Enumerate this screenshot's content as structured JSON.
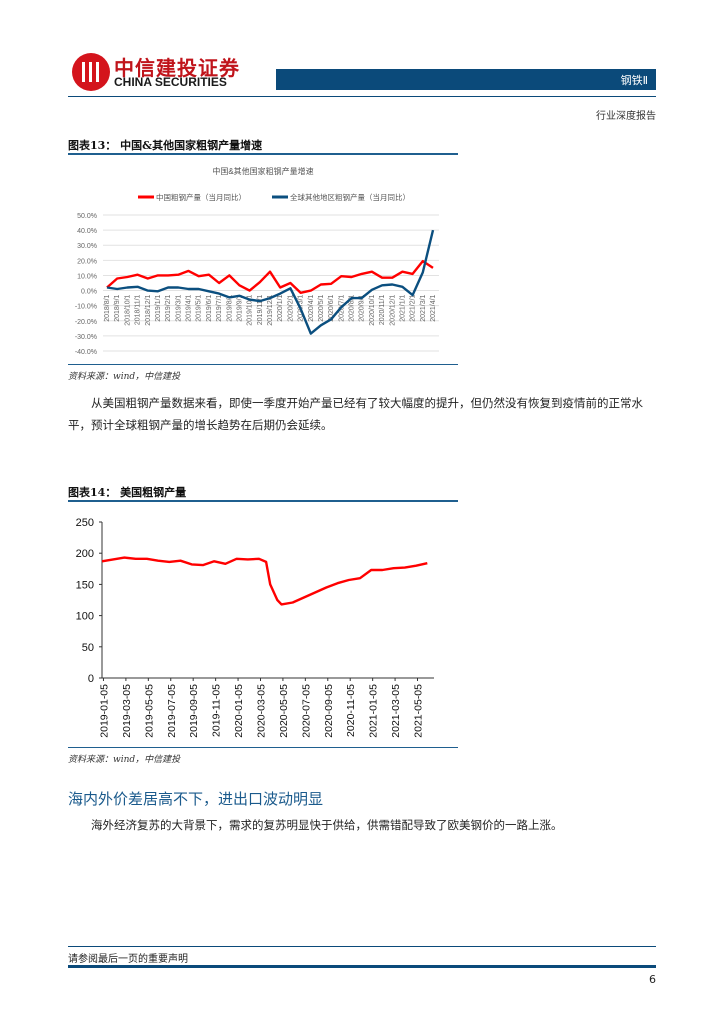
{
  "header": {
    "logo_cn": "中信建投证券",
    "logo_en": "CHINA SECURITIES",
    "sector_label": "钢铁Ⅱ",
    "report_type": "行业深度报告"
  },
  "figure13": {
    "title": "图表13：  中国&其他国家粗钢产量增速",
    "source": "资料来源：wind，中信建投"
  },
  "paragraph1": "从美国粗钢产量数据来看，即使一季度开始产量已经有了较大幅度的提升，但仍然没有恢复到疫情前的正常水平，预计全球粗钢产量的增长趋势在后期仍会延续。",
  "figure14": {
    "title": "图表14：  美国粗钢产量",
    "source": "资料来源：wind，中信建投"
  },
  "section_heading": "海内外价差居高不下，进出口波动明显",
  "paragraph2": "海外经济复苏的大背景下，需求的复苏明显快于供给，供需错配导致了欧美钢价的一路上涨。",
  "footer": {
    "disclaimer": "请参阅最后一页的重要声明",
    "page_number": "6"
  },
  "colors": {
    "brand_red": "#d4141c",
    "brand_blue": "#0b4a7a",
    "series_red": "#ff0000",
    "series_blue": "#0b4f7f"
  },
  "chart_data": [
    {
      "type": "line",
      "title": "中国&其他国家粗钢产量增速",
      "xlabel": "",
      "ylabel": "",
      "ylim": [
        -40,
        50
      ],
      "yticks": [
        "50.0%",
        "40.0%",
        "30.0%",
        "20.0%",
        "10.0%",
        "0.0%",
        "-10.0%",
        "-20.0%",
        "-30.0%",
        "-40.0%"
      ],
      "grid": true,
      "legend_position": "top",
      "categories": [
        "2018/8/1",
        "2018/9/1",
        "2018/10/1",
        "2018/11/1",
        "2018/12/1",
        "2019/1/1",
        "2019/2/1",
        "2019/3/1",
        "2019/4/1",
        "2019/5/1",
        "2019/6/1",
        "2019/7/1",
        "2019/8/1",
        "2019/9/1",
        "2019/10/1",
        "2019/11/1",
        "2019/12/1",
        "2020/1/1",
        "2020/2/1",
        "2020/3/1",
        "2020/4/1",
        "2020/5/1",
        "2020/6/1",
        "2020/7/1",
        "2020/8/1",
        "2020/9/1",
        "2020/10/1",
        "2020/11/1",
        "2020/12/1",
        "2021/1/1",
        "2021/2/1",
        "2021/3/1",
        "2021/4/1"
      ],
      "series": [
        {
          "name": "中国粗钢产量（当月同比）",
          "color": "#ff0000",
          "values": [
            2,
            8,
            9,
            10.5,
            8,
            10,
            10,
            10.5,
            13,
            9.5,
            10.5,
            5,
            10,
            3.5,
            0,
            5.5,
            12.5,
            2,
            5,
            -1.5,
            0,
            4,
            4.5,
            9.5,
            9,
            11,
            12.5,
            8.5,
            8.5,
            12.5,
            11,
            19.5,
            15
          ]
        },
        {
          "name": "全球其他地区粗钢产量（当月同比）",
          "color": "#0b4f7f",
          "values": [
            2,
            1,
            2,
            2.5,
            0,
            -0.5,
            2,
            2,
            1,
            1,
            -0.5,
            -2,
            -4.5,
            -3.5,
            -6,
            -7,
            -5,
            -2,
            1.5,
            -12,
            -28.5,
            -23,
            -19,
            -11,
            -5,
            -5,
            0.5,
            3.5,
            4,
            2.5,
            -3,
            12,
            40
          ]
        }
      ],
      "legend": [
        "中国粗钢产量（当月同比）",
        "全球其他地区粗钢产量（当月同比）"
      ]
    },
    {
      "type": "line",
      "title": "美国粗钢产量",
      "xlabel": "",
      "ylabel": "",
      "ylim": [
        0,
        250
      ],
      "yticks": [
        "250",
        "200",
        "150",
        "100",
        "50",
        "0"
      ],
      "grid": false,
      "categories": [
        "2019-01-05",
        "2019-03-05",
        "2019-05-05",
        "2019-07-05",
        "2019-09-05",
        "2019-11-05",
        "2020-01-05",
        "2020-03-05",
        "2020-05-05",
        "2020-07-05",
        "2020-09-05",
        "2020-11-05",
        "2021-01-05",
        "2021-03-05",
        "2021-05-05"
      ],
      "series": [
        {
          "name": "美国粗钢产量",
          "color": "#ff0000",
          "x": [
            "2019-01",
            "2019-02",
            "2019-03",
            "2019-04",
            "2019-05",
            "2019-06",
            "2019-07",
            "2019-08",
            "2019-09",
            "2019-10",
            "2019-11",
            "2019-12",
            "2020-01",
            "2020-02",
            "2020-03",
            "2020-03-20",
            "2020-04",
            "2020-04-20",
            "2020-05",
            "2020-06",
            "2020-07",
            "2020-08",
            "2020-09",
            "2020-10",
            "2020-11",
            "2020-12",
            "2021-01",
            "2021-02",
            "2021-03",
            "2021-04",
            "2021-05",
            "2021-06"
          ],
          "values": [
            187,
            190,
            193,
            191,
            191,
            188,
            186,
            188,
            182,
            181,
            187,
            183,
            191,
            190,
            191,
            186,
            150,
            125,
            118,
            121,
            129,
            137,
            145,
            152,
            157,
            160,
            173,
            173,
            176,
            177,
            180,
            184
          ]
        }
      ]
    }
  ]
}
